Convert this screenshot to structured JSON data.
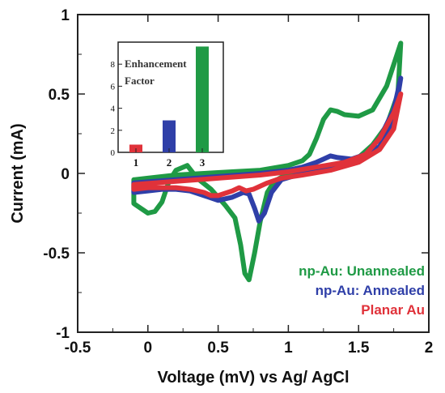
{
  "chart_data": [
    {
      "type": "line",
      "title": "",
      "xlabel": "Voltage (mV) vs Ag/ AgCl",
      "ylabel": "Current (mA)",
      "xlim": [
        -0.5,
        2
      ],
      "ylim": [
        -1,
        1
      ],
      "xticks": [
        "-0.5",
        "0",
        "0.5",
        "1",
        "1.5",
        "2"
      ],
      "yticks": [
        "-1",
        "-0.5",
        "0",
        "0.5",
        "1"
      ],
      "grid": false,
      "legend_position": "bottom-right",
      "series": [
        {
          "name": "np-Au: Unannealed",
          "color": "#1f9a45",
          "points": [
            [
              -0.1,
              -0.04
            ],
            [
              0.0,
              -0.03
            ],
            [
              0.2,
              -0.01
            ],
            [
              0.4,
              0.0
            ],
            [
              0.6,
              0.01
            ],
            [
              0.8,
              0.02
            ],
            [
              1.0,
              0.05
            ],
            [
              1.1,
              0.08
            ],
            [
              1.15,
              0.12
            ],
            [
              1.2,
              0.22
            ],
            [
              1.25,
              0.34
            ],
            [
              1.3,
              0.4
            ],
            [
              1.35,
              0.39
            ],
            [
              1.4,
              0.37
            ],
            [
              1.5,
              0.36
            ],
            [
              1.6,
              0.4
            ],
            [
              1.7,
              0.55
            ],
            [
              1.8,
              0.82
            ],
            [
              1.78,
              0.5
            ],
            [
              1.7,
              0.3
            ],
            [
              1.6,
              0.18
            ],
            [
              1.5,
              0.1
            ],
            [
              1.35,
              0.06
            ],
            [
              1.2,
              0.03
            ],
            [
              1.0,
              0.0
            ],
            [
              0.9,
              -0.05
            ],
            [
              0.85,
              -0.12
            ],
            [
              0.8,
              -0.3
            ],
            [
              0.76,
              -0.5
            ],
            [
              0.72,
              -0.67
            ],
            [
              0.69,
              -0.63
            ],
            [
              0.66,
              -0.45
            ],
            [
              0.62,
              -0.28
            ],
            [
              0.55,
              -0.2
            ],
            [
              0.45,
              -0.1
            ],
            [
              0.35,
              -0.03
            ],
            [
              0.28,
              0.05
            ],
            [
              0.2,
              0.02
            ],
            [
              0.15,
              -0.05
            ],
            [
              0.1,
              -0.18
            ],
            [
              0.05,
              -0.24
            ],
            [
              0.0,
              -0.25
            ],
            [
              -0.05,
              -0.22
            ],
            [
              -0.1,
              -0.19
            ],
            [
              -0.1,
              -0.04
            ]
          ]
        },
        {
          "name": "np-Au: Annealed",
          "color": "#2f3fa8",
          "points": [
            [
              -0.1,
              -0.06
            ],
            [
              0.2,
              -0.04
            ],
            [
              0.5,
              -0.02
            ],
            [
              0.8,
              0.0
            ],
            [
              1.0,
              0.02
            ],
            [
              1.1,
              0.04
            ],
            [
              1.2,
              0.07
            ],
            [
              1.25,
              0.09
            ],
            [
              1.3,
              0.11
            ],
            [
              1.35,
              0.1
            ],
            [
              1.45,
              0.09
            ],
            [
              1.55,
              0.12
            ],
            [
              1.65,
              0.22
            ],
            [
              1.75,
              0.4
            ],
            [
              1.8,
              0.6
            ],
            [
              1.75,
              0.32
            ],
            [
              1.65,
              0.17
            ],
            [
              1.5,
              0.08
            ],
            [
              1.3,
              0.03
            ],
            [
              1.1,
              0.0
            ],
            [
              0.95,
              -0.04
            ],
            [
              0.88,
              -0.12
            ],
            [
              0.83,
              -0.25
            ],
            [
              0.79,
              -0.3
            ],
            [
              0.76,
              -0.22
            ],
            [
              0.72,
              -0.13
            ],
            [
              0.68,
              -0.12
            ],
            [
              0.6,
              -0.15
            ],
            [
              0.5,
              -0.17
            ],
            [
              0.4,
              -0.14
            ],
            [
              0.3,
              -0.11
            ],
            [
              0.2,
              -0.1
            ],
            [
              0.1,
              -0.1
            ],
            [
              0.0,
              -0.11
            ],
            [
              -0.1,
              -0.12
            ],
            [
              -0.1,
              -0.06
            ]
          ]
        },
        {
          "name": "Planar Au",
          "color": "#e0323a",
          "points": [
            [
              -0.1,
              -0.07
            ],
            [
              0.2,
              -0.05
            ],
            [
              0.5,
              -0.03
            ],
            [
              0.8,
              -0.01
            ],
            [
              1.0,
              0.01
            ],
            [
              1.2,
              0.04
            ],
            [
              1.4,
              0.07
            ],
            [
              1.55,
              0.12
            ],
            [
              1.65,
              0.22
            ],
            [
              1.75,
              0.38
            ],
            [
              1.8,
              0.5
            ],
            [
              1.75,
              0.28
            ],
            [
              1.65,
              0.15
            ],
            [
              1.5,
              0.07
            ],
            [
              1.3,
              0.02
            ],
            [
              1.1,
              -0.01
            ],
            [
              0.95,
              -0.03
            ],
            [
              0.85,
              -0.06
            ],
            [
              0.75,
              -0.1
            ],
            [
              0.7,
              -0.11
            ],
            [
              0.65,
              -0.09
            ],
            [
              0.6,
              -0.11
            ],
            [
              0.5,
              -0.14
            ],
            [
              0.45,
              -0.14
            ],
            [
              0.4,
              -0.12
            ],
            [
              0.3,
              -0.1
            ],
            [
              0.2,
              -0.09
            ],
            [
              0.1,
              -0.09
            ],
            [
              0.0,
              -0.09
            ],
            [
              -0.1,
              -0.1
            ],
            [
              -0.1,
              -0.07
            ]
          ]
        }
      ]
    },
    {
      "type": "bar",
      "title": "Enhancement Factor",
      "title_lines": [
        "Enhancement",
        "Factor"
      ],
      "categories": [
        "1",
        "2",
        "3"
      ],
      "values": [
        0.7,
        2.9,
        9.6
      ],
      "colors": [
        "#e0323a",
        "#2f3fa8",
        "#1f9a45"
      ],
      "ylim": [
        0,
        10
      ],
      "yticks": [
        "0",
        "2",
        "4",
        "6",
        "8"
      ]
    }
  ]
}
